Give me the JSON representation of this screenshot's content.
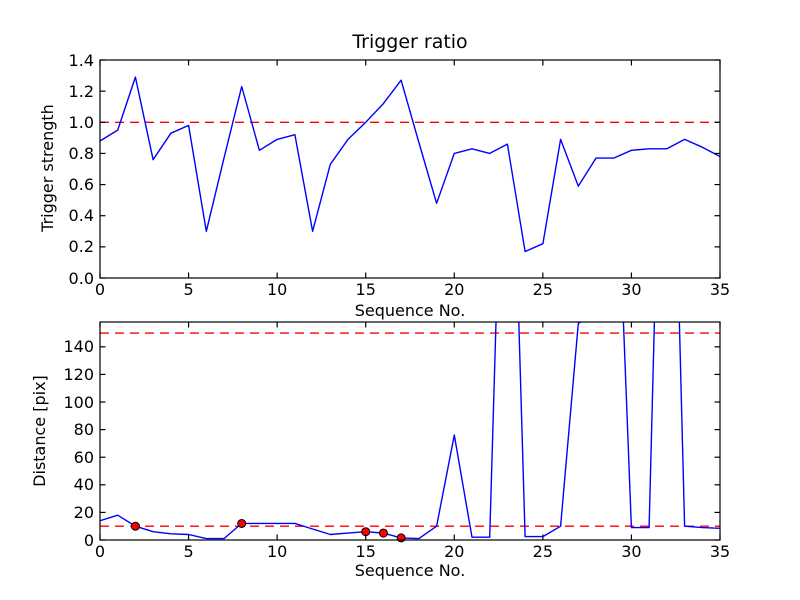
{
  "figure": {
    "background": "#ffffff",
    "frame_color": "#000000",
    "note": "two stacked line plots, matplotlib-classic style, ticks on all four sides pointing inward, no grid, no legend"
  },
  "chart_data": [
    {
      "type": "line",
      "title": "Trigger ratio",
      "xlabel": "Sequence No.",
      "ylabel": "Trigger strength",
      "xlim": [
        0,
        35
      ],
      "ylim": [
        0,
        1.4
      ],
      "xtick_labels": [
        "0",
        "5",
        "10",
        "15",
        "20",
        "25",
        "30",
        "35"
      ],
      "ytick_labels": [
        "0.0",
        "0.2",
        "0.4",
        "0.6",
        "0.8",
        "1.0",
        "1.2",
        "1.4"
      ],
      "grid": false,
      "legend": null,
      "x": [
        0,
        1,
        2,
        3,
        4,
        5,
        6,
        7,
        8,
        9,
        10,
        11,
        12,
        13,
        14,
        15,
        16,
        17,
        18,
        19,
        20,
        21,
        22,
        23,
        24,
        25,
        26,
        27,
        28,
        29,
        30,
        31,
        32,
        33,
        34,
        35
      ],
      "series": [
        {
          "name": "trigger strength",
          "color": "#0000ff",
          "values": [
            0.88,
            0.95,
            1.29,
            0.76,
            0.93,
            0.98,
            0.3,
            0.77,
            1.23,
            0.82,
            0.89,
            0.92,
            0.3,
            0.73,
            0.89,
            1.0,
            1.12,
            1.27,
            0.87,
            0.48,
            0.8,
            0.83,
            0.8,
            0.86,
            0.17,
            0.22,
            0.89,
            0.59,
            0.77,
            0.77,
            0.82,
            0.83,
            0.83,
            0.89,
            0.84,
            0.78
          ]
        }
      ],
      "reference_lines": [
        {
          "name": "trigger threshold",
          "y": 1.0,
          "color": "#ff0000",
          "style": "dashed"
        }
      ],
      "markers": null
    },
    {
      "type": "line",
      "title": "",
      "xlabel": "Sequence No.",
      "ylabel": "Distance [pix]",
      "xlim": [
        0,
        35
      ],
      "ylim": [
        0,
        158
      ],
      "xtick_labels": [
        "0",
        "5",
        "10",
        "15",
        "20",
        "25",
        "30",
        "35"
      ],
      "ytick_labels": [
        "0",
        "20",
        "40",
        "60",
        "80",
        "100",
        "120",
        "140"
      ],
      "grid": false,
      "legend": null,
      "x": [
        0,
        1,
        2,
        3,
        4,
        5,
        6,
        7,
        8,
        9,
        10,
        11,
        12,
        13,
        14,
        15,
        16,
        17,
        18,
        19,
        20,
        21,
        22,
        23,
        24,
        25,
        26,
        27,
        28,
        29,
        30,
        31,
        32,
        33,
        34,
        35
      ],
      "series": [
        {
          "name": "distance",
          "color": "#0000ff",
          "values": [
            14,
            18,
            10,
            6,
            4.5,
            4,
            1,
            1,
            12,
            12,
            12,
            12,
            8,
            4,
            5,
            6,
            5,
            1.5,
            1,
            10,
            76,
            2,
            2,
            440,
            2.5,
            2.5,
            10,
            157,
            165,
            340,
            9,
            9,
            510,
            10,
            9,
            8.5
          ],
          "clipped_above_ymax_at_x": [
            23,
            28,
            29,
            32
          ]
        }
      ],
      "reference_lines": [
        {
          "name": "upper distance threshold",
          "y": 150,
          "color": "#ff0000",
          "style": "dashed"
        },
        {
          "name": "lower distance threshold",
          "y": 10,
          "color": "#ff0000",
          "style": "dashed"
        }
      ],
      "markers": {
        "name": "trigger events",
        "shape": "circle",
        "fill": "#ff0000",
        "edge": "#000000",
        "points": [
          [
            2,
            10
          ],
          [
            8,
            12
          ],
          [
            15,
            6
          ],
          [
            16,
            5
          ],
          [
            17,
            1.5
          ]
        ]
      }
    }
  ]
}
